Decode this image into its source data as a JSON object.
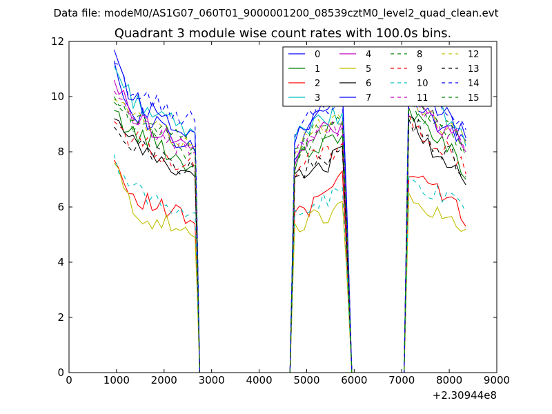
{
  "figure": {
    "suptitle": "Data file: modeM0/AS1G07_060T01_9000001200_08539cztM0_level2_quad_clean.evt"
  },
  "chart_data": {
    "type": "line",
    "title": "Quadrant 3 module wise count rates with 100.0s bins.",
    "xlabel": "",
    "ylabel": "",
    "xlim": [
      0,
      9000
    ],
    "ylim": [
      0,
      12
    ],
    "x_offset_label": "+2.30944e8",
    "x_ticks": [
      0,
      1000,
      2000,
      3000,
      4000,
      5000,
      6000,
      7000,
      8000,
      9000
    ],
    "x_tick_labels": [
      "0",
      "1000",
      "2000",
      "3000",
      "4000",
      "5000",
      "6000",
      "7000",
      "8000",
      "9000"
    ],
    "y_ticks": [
      0,
      2,
      4,
      6,
      8,
      10,
      12
    ],
    "y_tick_labels": [
      "0",
      "2",
      "4",
      "6",
      "8",
      "10",
      "12"
    ],
    "grid": false,
    "legend_position": "top-right",
    "segments": [
      {
        "x0": 950,
        "x1": 2650,
        "drop_to": 2750
      },
      {
        "x0": 4750,
        "x1": 5750,
        "drop_to": 5950
      },
      {
        "x0": 7150,
        "x1": 8350,
        "drop_to": 8350
      }
    ],
    "series": [
      {
        "name": "0",
        "color": "#0000ff",
        "dash": "solid",
        "seg_values": [
          [
            11.3,
            9.6,
            9.1,
            8.9,
            8.2,
            8.0
          ],
          [
            7.7,
            8.9,
            9.5,
            9.8,
            10.3
          ],
          [
            10.1,
            9.5,
            9.0,
            8.6,
            8.4
          ]
        ]
      },
      {
        "name": "1",
        "color": "#008000",
        "dash": "solid",
        "seg_values": [
          [
            9.5,
            8.7,
            8.5,
            8.2,
            7.7,
            7.5
          ],
          [
            7.3,
            8.0,
            8.3,
            8.4,
            8.6
          ],
          [
            9.6,
            9.0,
            8.5,
            8.2,
            7.0
          ]
        ]
      },
      {
        "name": "2",
        "color": "#ff0000",
        "dash": "solid",
        "seg_values": [
          [
            7.7,
            6.5,
            6.2,
            5.9,
            5.7,
            5.4
          ],
          [
            5.8,
            6.0,
            6.1,
            6.3,
            7.3
          ],
          [
            7.1,
            6.8,
            6.5,
            6.2,
            5.3
          ]
        ]
      },
      {
        "name": "3",
        "color": "#00bfbf",
        "dash": "solid",
        "seg_values": [
          [
            11.1,
            10.0,
            9.6,
            9.2,
            8.9,
            8.7
          ],
          [
            8.5,
            8.9,
            9.0,
            9.2,
            9.4
          ],
          [
            10.6,
            10.0,
            9.5,
            9.2,
            8.2
          ]
        ]
      },
      {
        "name": "4",
        "color": "#bf00bf",
        "dash": "solid",
        "seg_values": [
          [
            10.6,
            9.4,
            9.0,
            8.7,
            8.4,
            8.2
          ],
          [
            7.5,
            8.2,
            8.7,
            8.9,
            9.1
          ],
          [
            10.1,
            9.5,
            9.0,
            8.7,
            8.0
          ]
        ]
      },
      {
        "name": "5",
        "color": "#bfbf00",
        "dash": "solid",
        "seg_values": [
          [
            7.6,
            6.0,
            5.6,
            5.4,
            5.2,
            4.9
          ],
          [
            5.4,
            5.5,
            5.6,
            5.7,
            6.2
          ],
          [
            6.5,
            6.0,
            5.7,
            5.4,
            5.2
          ]
        ]
      },
      {
        "name": "6",
        "color": "#000000",
        "dash": "solid",
        "seg_values": [
          [
            9.2,
            8.3,
            8.0,
            7.6,
            7.3,
            7.1
          ],
          [
            7.2,
            7.4,
            7.5,
            7.6,
            8.2
          ],
          [
            9.3,
            8.4,
            8.0,
            7.7,
            6.8
          ]
        ]
      },
      {
        "name": "7",
        "color": "#0000ff",
        "dash": "solid",
        "seg_values": [
          [
            11.7,
            10.0,
            9.6,
            9.3,
            9.0,
            8.7
          ],
          [
            8.3,
            9.0,
            9.3,
            9.5,
            10.4
          ],
          [
            10.6,
            9.9,
            9.5,
            9.1,
            8.5
          ]
        ]
      },
      {
        "name": "8",
        "color": "#008000",
        "dash": "dashed",
        "seg_values": [
          [
            9.8,
            9.1,
            8.8,
            8.5,
            8.2,
            8.0
          ],
          [
            7.8,
            8.3,
            8.6,
            8.8,
            9.0
          ],
          [
            9.8,
            9.3,
            8.9,
            8.5,
            7.8
          ]
        ]
      },
      {
        "name": "9",
        "color": "#ff0000",
        "dash": "dashed",
        "seg_values": [
          [
            9.1,
            8.5,
            8.2,
            7.9,
            7.6,
            7.4
          ],
          [
            7.0,
            7.6,
            7.8,
            8.0,
            8.3
          ],
          [
            9.4,
            8.7,
            8.3,
            8.0,
            7.2
          ]
        ]
      },
      {
        "name": "10",
        "color": "#00bfbf",
        "dash": "dashed",
        "seg_values": [
          [
            7.9,
            6.8,
            6.4,
            6.1,
            6.0,
            5.8
          ],
          [
            5.9,
            6.1,
            6.2,
            6.3,
            6.7
          ],
          [
            7.1,
            6.7,
            6.4,
            6.2,
            5.8
          ]
        ]
      },
      {
        "name": "11",
        "color": "#bf00bf",
        "dash": "dashed",
        "seg_values": [
          [
            10.2,
            9.1,
            8.8,
            8.5,
            8.2,
            8.0
          ],
          [
            7.9,
            8.3,
            8.6,
            8.8,
            8.9
          ],
          [
            9.9,
            9.3,
            8.9,
            8.6,
            8.0
          ]
        ]
      },
      {
        "name": "12",
        "color": "#bfbf00",
        "dash": "dashed",
        "seg_values": [
          [
            9.9,
            9.3,
            9.0,
            8.8,
            8.5,
            8.3
          ],
          [
            8.0,
            8.6,
            8.8,
            9.0,
            9.1
          ],
          [
            10.0,
            9.5,
            9.1,
            8.8,
            8.3
          ]
        ]
      },
      {
        "name": "13",
        "color": "#000000",
        "dash": "dashed",
        "seg_values": [
          [
            8.9,
            8.4,
            8.1,
            7.8,
            7.5,
            7.3
          ],
          [
            7.1,
            7.5,
            7.7,
            7.9,
            8.1
          ],
          [
            9.2,
            8.6,
            8.2,
            7.9,
            7.1
          ]
        ]
      },
      {
        "name": "14",
        "color": "#0000ff",
        "dash": "dashed",
        "seg_values": [
          [
            11.2,
            10.2,
            9.9,
            9.6,
            9.3,
            9.1
          ],
          [
            8.6,
            9.2,
            9.5,
            9.6,
            9.9
          ],
          [
            10.6,
            10.0,
            9.6,
            9.3,
            8.8
          ]
        ]
      },
      {
        "name": "15",
        "color": "#008000",
        "dash": "dashed",
        "seg_values": [
          [
            10.0,
            9.3,
            9.0,
            8.7,
            8.4,
            8.2
          ],
          [
            8.1,
            8.5,
            8.8,
            9.0,
            9.1
          ],
          [
            10.0,
            9.5,
            9.1,
            8.8,
            8.1
          ]
        ]
      }
    ]
  }
}
